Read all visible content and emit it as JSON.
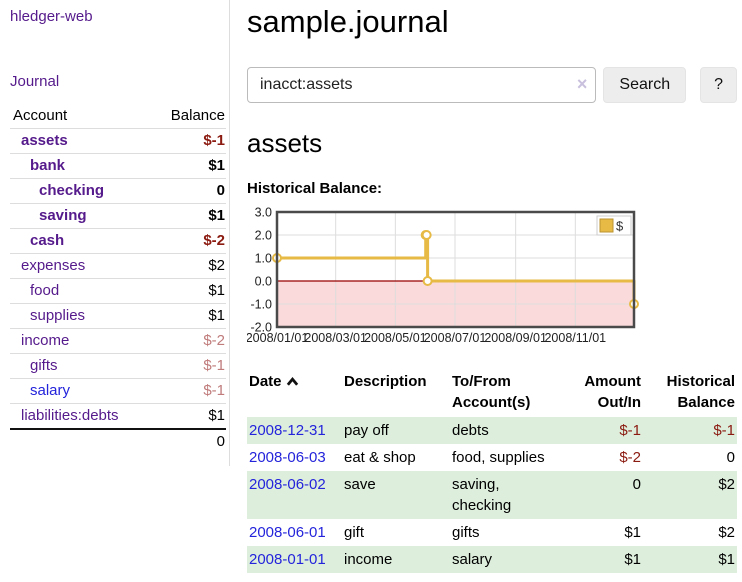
{
  "colors": {
    "link_purple": "#551a8b",
    "link_blue": "#2424db",
    "negative_strong": "#8b1a10",
    "negative_soft": "#c07b7b",
    "row_green": "#ddeedd",
    "gold_line": "#e7ba45"
  },
  "sidebar": {
    "app_title": "hledger-web",
    "journal_label": "Journal",
    "accounts": {
      "header_account": "Account",
      "header_balance": "Balance",
      "rows": [
        {
          "name": "assets",
          "level": 1,
          "bold": true,
          "link_color": "purple",
          "balance": "$-1",
          "balance_tone": "neg-strong"
        },
        {
          "name": "bank",
          "level": 2,
          "bold": true,
          "link_color": "purple",
          "balance": "$1",
          "balance_tone": ""
        },
        {
          "name": "checking",
          "level": 3,
          "bold": true,
          "link_color": "purple",
          "balance": "0",
          "balance_tone": ""
        },
        {
          "name": "saving",
          "level": 3,
          "bold": true,
          "link_color": "purple",
          "balance": "$1",
          "balance_tone": ""
        },
        {
          "name": "cash",
          "level": 2,
          "bold": true,
          "link_color": "purple",
          "balance": "$-2",
          "balance_tone": "neg-strong"
        },
        {
          "name": "expenses",
          "level": 1,
          "bold": false,
          "link_color": "purple",
          "balance": "$2",
          "balance_tone": ""
        },
        {
          "name": "food",
          "level": 2,
          "bold": false,
          "link_color": "purple",
          "balance": "$1",
          "balance_tone": ""
        },
        {
          "name": "supplies",
          "level": 2,
          "bold": false,
          "link_color": "purple",
          "balance": "$1",
          "balance_tone": ""
        },
        {
          "name": "income",
          "level": 1,
          "bold": false,
          "link_color": "purple",
          "balance": "$-2",
          "balance_tone": "neg-soft"
        },
        {
          "name": "gifts",
          "level": 2,
          "bold": false,
          "link_color": "purple",
          "balance": "$-1",
          "balance_tone": "neg-soft"
        },
        {
          "name": "salary",
          "level": 2,
          "bold": false,
          "link_color": "blue",
          "balance": "$-1",
          "balance_tone": "neg-soft"
        },
        {
          "name": "liabilities:debts",
          "level": 1,
          "bold": false,
          "link_color": "purple",
          "balance": "$1",
          "balance_tone": ""
        }
      ],
      "total": "0"
    }
  },
  "main": {
    "title": "sample.journal",
    "search": {
      "value": "inacct:assets",
      "clear_icon": "×",
      "button_label": "Search",
      "help_label": "?"
    },
    "account_heading": "assets",
    "chart_label": "Historical Balance:",
    "register": {
      "headers": {
        "date": "Date",
        "description": "Description",
        "accounts": "To/From Account(s)",
        "amount": "Amount Out/In",
        "balance": "Historical Balance"
      },
      "rows": [
        {
          "date": "2008-12-31",
          "description": "pay off",
          "accounts": "debts",
          "amount": "$-1",
          "amount_negative": true,
          "balance": "$-1",
          "balance_negative": true,
          "shaded": true
        },
        {
          "date": "2008-06-03",
          "description": "eat & shop",
          "accounts": "food, supplies",
          "amount": "$-2",
          "amount_negative": true,
          "balance": "0",
          "balance_negative": false,
          "shaded": false
        },
        {
          "date": "2008-06-02",
          "description": "save",
          "accounts": "saving, checking",
          "amount": "0",
          "amount_negative": false,
          "balance": "$2",
          "balance_negative": false,
          "shaded": true
        },
        {
          "date": "2008-06-01",
          "description": "gift",
          "accounts": "gifts",
          "amount": "$1",
          "amount_negative": false,
          "balance": "$2",
          "balance_negative": false,
          "shaded": false
        },
        {
          "date": "2008-01-01",
          "description": "income",
          "accounts": "salary",
          "amount": "$1",
          "amount_negative": false,
          "balance": "$1",
          "balance_negative": false,
          "shaded": true
        }
      ]
    }
  },
  "chart_data": {
    "type": "line",
    "step": true,
    "title": "Historical Balance",
    "legend_position": "top-right",
    "grid": true,
    "ylim": [
      -2.0,
      3.0
    ],
    "yticks": [
      3.0,
      2.0,
      1.0,
      0.0,
      -1.0,
      -2.0
    ],
    "days_total": 365,
    "xticks": [
      {
        "label": "2008/01/01",
        "day": 0
      },
      {
        "label": "2008/03/01",
        "day": 60
      },
      {
        "label": "2008/05/01",
        "day": 121
      },
      {
        "label": "2008/07/01",
        "day": 182
      },
      {
        "label": "2008/09/01",
        "day": 244
      },
      {
        "label": "2008/11/01",
        "day": 305
      }
    ],
    "series": [
      {
        "name": "$",
        "points": [
          {
            "date": "2008-01-01",
            "day": 0,
            "value": 1
          },
          {
            "date": "2008-06-01",
            "day": 152,
            "value": 2
          },
          {
            "date": "2008-06-02",
            "day": 153,
            "value": 2
          },
          {
            "date": "2008-06-03",
            "day": 154,
            "value": 0
          },
          {
            "date": "2008-12-31",
            "day": 365,
            "value": -1
          }
        ]
      }
    ],
    "colors": {
      "line": "#e7ba45",
      "marker_fill": "#ffffff",
      "legend_square_stroke": "#bb9330",
      "negative_fill": "#fadada",
      "zero_line": "#990000",
      "grid": "#dddddd",
      "border": "#4a4a4a"
    }
  }
}
